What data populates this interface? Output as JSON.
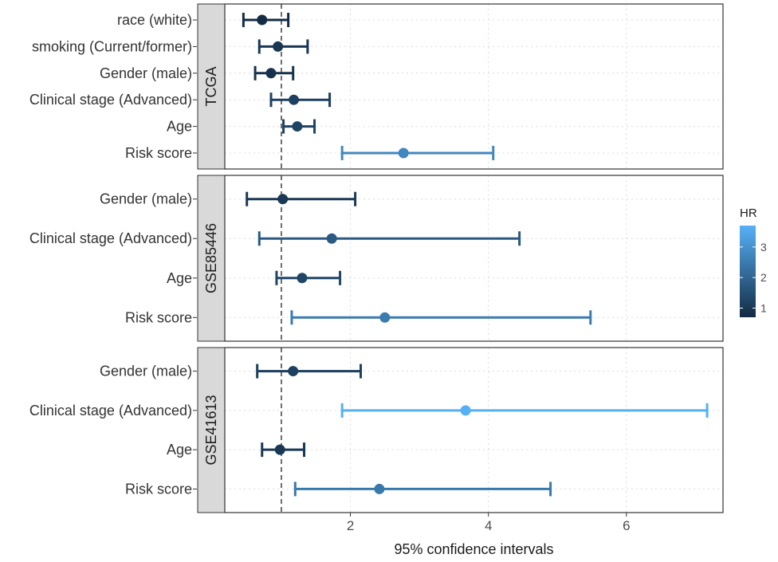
{
  "chart_data": {
    "type": "forest",
    "xlabel": "95% confidence intervals",
    "x_ticks": [
      2,
      4,
      6
    ],
    "xlim": [
      0.18,
      7.4
    ],
    "reference_line": 1,
    "panels": [
      {
        "name": "TCGA",
        "rows": [
          {
            "label": "race (white)",
            "hr": 0.72,
            "lower": 0.45,
            "upper": 1.1
          },
          {
            "label": "smoking (Current/former)",
            "hr": 0.95,
            "lower": 0.68,
            "upper": 1.38
          },
          {
            "label": "Gender (male)",
            "hr": 0.85,
            "lower": 0.62,
            "upper": 1.17
          },
          {
            "label": "Clinical stage (Advanced)",
            "hr": 1.18,
            "lower": 0.85,
            "upper": 1.7
          },
          {
            "label": "Age",
            "hr": 1.23,
            "lower": 1.03,
            "upper": 1.48
          },
          {
            "label": "Risk score",
            "hr": 2.77,
            "lower": 1.88,
            "upper": 4.07
          }
        ]
      },
      {
        "name": "GSE85446",
        "rows": [
          {
            "label": "Gender (male)",
            "hr": 1.02,
            "lower": 0.5,
            "upper": 2.07
          },
          {
            "label": "Clinical stage (Advanced)",
            "hr": 1.73,
            "lower": 0.68,
            "upper": 4.45
          },
          {
            "label": "Age",
            "hr": 1.3,
            "lower": 0.93,
            "upper": 1.85
          },
          {
            "label": "Risk score",
            "hr": 2.5,
            "lower": 1.15,
            "upper": 5.48
          }
        ]
      },
      {
        "name": "GSE41613",
        "rows": [
          {
            "label": "Gender (male)",
            "hr": 1.17,
            "lower": 0.65,
            "upper": 2.15
          },
          {
            "label": "Clinical stage (Advanced)",
            "hr": 3.67,
            "lower": 1.88,
            "upper": 7.17
          },
          {
            "label": "Age",
            "hr": 0.98,
            "lower": 0.72,
            "upper": 1.33
          },
          {
            "label": "Risk score",
            "hr": 2.42,
            "lower": 1.2,
            "upper": 4.9
          }
        ]
      }
    ],
    "legend": {
      "title": "HR",
      "ticks": [
        1,
        2,
        3
      ],
      "min": 0.7,
      "max": 3.7,
      "color_low": "#132b43",
      "color_high": "#56b1f7"
    }
  }
}
